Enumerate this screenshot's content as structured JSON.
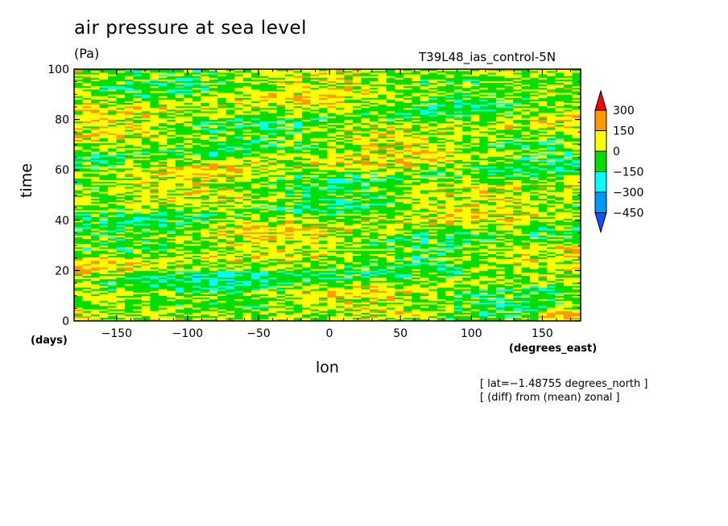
{
  "chart_data": {
    "type": "heatmap",
    "title": "air pressure at sea level",
    "units": "(Pa)",
    "run_name": "T39L48_ias_control-5N",
    "xlabel": "lon",
    "ylabel": "time",
    "x_units": "(degrees_east)",
    "y_units": "(days)",
    "xlim": [
      -180,
      177
    ],
    "ylim": [
      0,
      100
    ],
    "x_ticks": [
      -150,
      -100,
      -50,
      0,
      50,
      100,
      150
    ],
    "x_tick_labels": [
      "−150",
      "−100",
      "−50",
      "0",
      "50",
      "100",
      "150"
    ],
    "y_ticks": [
      0,
      20,
      40,
      60,
      80,
      100
    ],
    "y_tick_labels": [
      "0",
      "20",
      "40",
      "60",
      "80",
      "100"
    ],
    "notes": [
      "[ lat=−1.48755 degrees_north ]",
      "[ (diff) from (mean) zonal ]"
    ],
    "colorbar": {
      "levels": [
        300,
        150,
        0,
        -150,
        -300,
        -450
      ],
      "labels": [
        "300",
        "150",
        "0",
        "−150",
        "−300",
        "−450"
      ],
      "colors": [
        "#ff0000",
        "#ff9900",
        "#ffff00",
        "#00dd00",
        "#00ffff",
        "#0099ff",
        "#0055ff"
      ],
      "extend": "both"
    }
  }
}
